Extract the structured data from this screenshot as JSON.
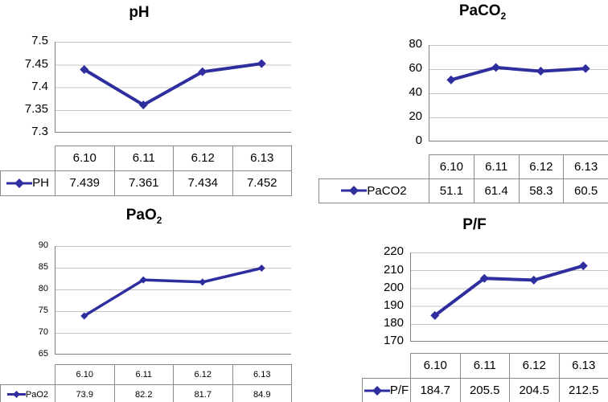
{
  "page": {
    "background": "#ffffff"
  },
  "colors": {
    "series": "#2E2E9E",
    "gridline": "#C4C4C4",
    "axis": "#808080",
    "table_border": "#8A8A8A",
    "text": "#000000"
  },
  "chart_data": [
    {
      "id": "ph",
      "type": "line",
      "title_main": "pH",
      "title_sub": "",
      "series_label": "PH",
      "categories": [
        "6.10",
        "6.11",
        "6.12",
        "6.13"
      ],
      "values": [
        7.439,
        7.361,
        7.434,
        7.452
      ],
      "ylim": [
        7.3,
        7.5
      ],
      "yticks": [
        "7.5",
        "7.45",
        "7.4",
        "7.35",
        "7.3"
      ],
      "grid": true,
      "legend_position": "table-left"
    },
    {
      "id": "paco2",
      "type": "line",
      "title_main": "PaCO",
      "title_sub": "2",
      "series_label": "PaCO2",
      "categories": [
        "6.10",
        "6.11",
        "6.12",
        "6.13"
      ],
      "values": [
        51.1,
        61.4,
        58.3,
        60.5
      ],
      "ylim": [
        0,
        80
      ],
      "yticks": [
        "80",
        "60",
        "40",
        "20",
        "0"
      ],
      "grid": true,
      "legend_position": "table-left"
    },
    {
      "id": "pao2",
      "type": "line",
      "title_main": "PaO",
      "title_sub": "2",
      "series_label": "PaO2",
      "categories": [
        "6.10",
        "6.11",
        "6.12",
        "6.13"
      ],
      "values": [
        73.9,
        82.2,
        81.7,
        84.9
      ],
      "ylim": [
        65,
        90
      ],
      "yticks": [
        "90",
        "85",
        "80",
        "75",
        "70",
        "65"
      ],
      "grid": true,
      "legend_position": "table-left"
    },
    {
      "id": "pf",
      "type": "line",
      "title_main": "P/F",
      "title_sub": "",
      "series_label": "P/F",
      "categories": [
        "6.10",
        "6.11",
        "6.12",
        "6.13"
      ],
      "values": [
        184.7,
        205.5,
        204.5,
        212.5
      ],
      "ylim": [
        170,
        220
      ],
      "yticks": [
        "220",
        "210",
        "200",
        "190",
        "180",
        "170"
      ],
      "grid": true,
      "legend_position": "table-left"
    }
  ]
}
